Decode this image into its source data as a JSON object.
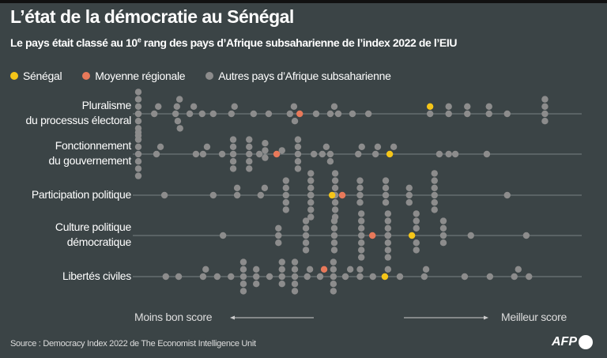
{
  "title": "L’état de la démocratie au Sénégal",
  "subtitle": "Le pays était classé au 10e rang des pays d’Afrique subsaharienne de l’index 2022 de l’EIU",
  "legend": [
    {
      "label": "Sénégal",
      "color": "#f5c518"
    },
    {
      "label": "Moyenne régionale",
      "color": "#e8795a"
    },
    {
      "label": "Autres pays d’Afrique subsaharienne",
      "color": "#8c8c8c"
    }
  ],
  "axis": {
    "left_label": "Moins bon score",
    "right_label": "Meilleur score"
  },
  "source": "Source : Democracy Index 2022 de The Economist Intelligence Unit",
  "logo_text": "AFP",
  "chart_data": {
    "type": "scatter",
    "title": "L’état de la démocratie au Sénégal",
    "xlim": [
      0,
      10
    ],
    "categories": [
      "Pluralisme du processus électoral",
      "Fonctionnement du gouvernement",
      "Participation politique",
      "Culture politique démocratique",
      "Libertés civiles"
    ],
    "rows": [
      {
        "label_lines": [
          "Pluralisme",
          "du processus électoral"
        ],
        "senegal": 6.58,
        "regional_avg": 3.64,
        "others": [
          0,
          0,
          0,
          0,
          0,
          0,
          0,
          0,
          0.36,
          0.45,
          0.84,
          0.89,
          0.94,
          0.87,
          0.93,
          1.16,
          1.25,
          1.44,
          1.69,
          2.1,
          2.17,
          2.6,
          2.94,
          3.42,
          3.51,
          3.53,
          4.01,
          4.33,
          4.42,
          4.51,
          4.83,
          5.19,
          6.58,
          7.0,
          7.0,
          7.42,
          7.42,
          7.91,
          7.91,
          8.32,
          9.17,
          9.17,
          9.17,
          9.17
        ]
      },
      {
        "label_lines": [
          "Fonctionnement",
          "du gouvernement"
        ],
        "senegal": 5.67,
        "regional_avg": 3.12,
        "others": [
          0,
          0,
          0,
          0,
          0,
          0,
          0,
          0.41,
          0.5,
          1.3,
          1.46,
          1.55,
          1.89,
          2.14,
          2.14,
          2.14,
          2.14,
          2.14,
          2.5,
          2.5,
          2.5,
          2.5,
          2.5,
          2.73,
          2.86,
          2.86,
          2.86,
          3.24,
          3.6,
          3.6,
          3.6,
          3.6,
          3.6,
          3.96,
          4.15,
          4.24,
          4.33,
          4.33,
          4.96,
          5.04,
          5.35,
          5.4,
          5.76,
          6.79,
          7.0,
          7.15,
          7.86
        ]
      },
      {
        "label_lines": [
          "Participation politique"
        ],
        "senegal": 4.37,
        "regional_avg": 4.6,
        "others": [
          0.59,
          1.69,
          2.23,
          2.23,
          2.76,
          2.85,
          3.33,
          3.33,
          3.33,
          3.33,
          3.33,
          3.89,
          3.89,
          3.89,
          3.89,
          3.89,
          3.89,
          3.89,
          3.89,
          3.89,
          4.44,
          4.44,
          4.44,
          4.44,
          4.44,
          4.44,
          4.44,
          5.0,
          5.0,
          5.0,
          5.0,
          5.58,
          5.58,
          5.58,
          5.58,
          6.11,
          6.11,
          6.11,
          6.68,
          6.68,
          6.68,
          6.68,
          6.68,
          6.68,
          8.32
        ]
      },
      {
        "label_lines": [
          "Culture politique",
          "démocratique"
        ],
        "senegal": 6.17,
        "regional_avg": 5.28,
        "others": [
          1.91,
          3.16,
          3.16,
          3.16,
          3.78,
          3.78,
          3.78,
          3.78,
          3.78,
          4.42,
          4.42,
          4.42,
          4.42,
          4.42,
          5.03,
          5.03,
          5.03,
          5.03,
          5.03,
          5.03,
          5.03,
          5.63,
          5.63,
          5.63,
          5.63,
          5.63,
          5.63,
          5.63,
          5.63,
          5.63,
          5.63,
          5.63,
          5.63,
          6.27,
          6.27,
          6.27,
          6.27,
          6.27,
          6.88,
          6.88,
          6.88,
          6.88,
          7.5,
          8.75
        ]
      },
      {
        "label_lines": [
          "Libertés civiles"
        ],
        "senegal": 5.56,
        "regional_avg": 4.19,
        "others": [
          0.62,
          0.91,
          1.46,
          1.52,
          1.78,
          2.09,
          2.37,
          2.37,
          2.37,
          2.37,
          2.37,
          2.66,
          2.66,
          2.66,
          2.96,
          3.24,
          3.24,
          3.24,
          3.24,
          3.53,
          3.53,
          3.53,
          3.53,
          3.53,
          3.81,
          3.87,
          4.1,
          4.4,
          4.4,
          4.4,
          4.4,
          4.4,
          4.67,
          4.78,
          5.0,
          5.0,
          5.29,
          5.63,
          5.9,
          6.45,
          6.49,
          7.36,
          7.93,
          8.48,
          8.57,
          8.81
        ]
      }
    ],
    "grid": false,
    "legend_position": "top-left"
  }
}
